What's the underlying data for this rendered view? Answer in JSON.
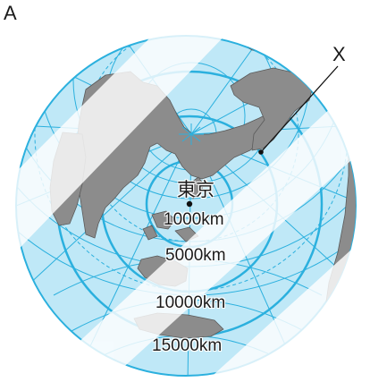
{
  "panel_label": "A",
  "marker_label": "X",
  "center_city": "東京",
  "distance_rings": [
    "1000km",
    "5000km",
    "10000km",
    "15000km"
  ],
  "colors": {
    "ocean": "#bfe8f7",
    "graticule": "#2bb0de",
    "land": "#8c8c8c",
    "coast": "#5a5a5a",
    "band": "#ffffff"
  }
}
